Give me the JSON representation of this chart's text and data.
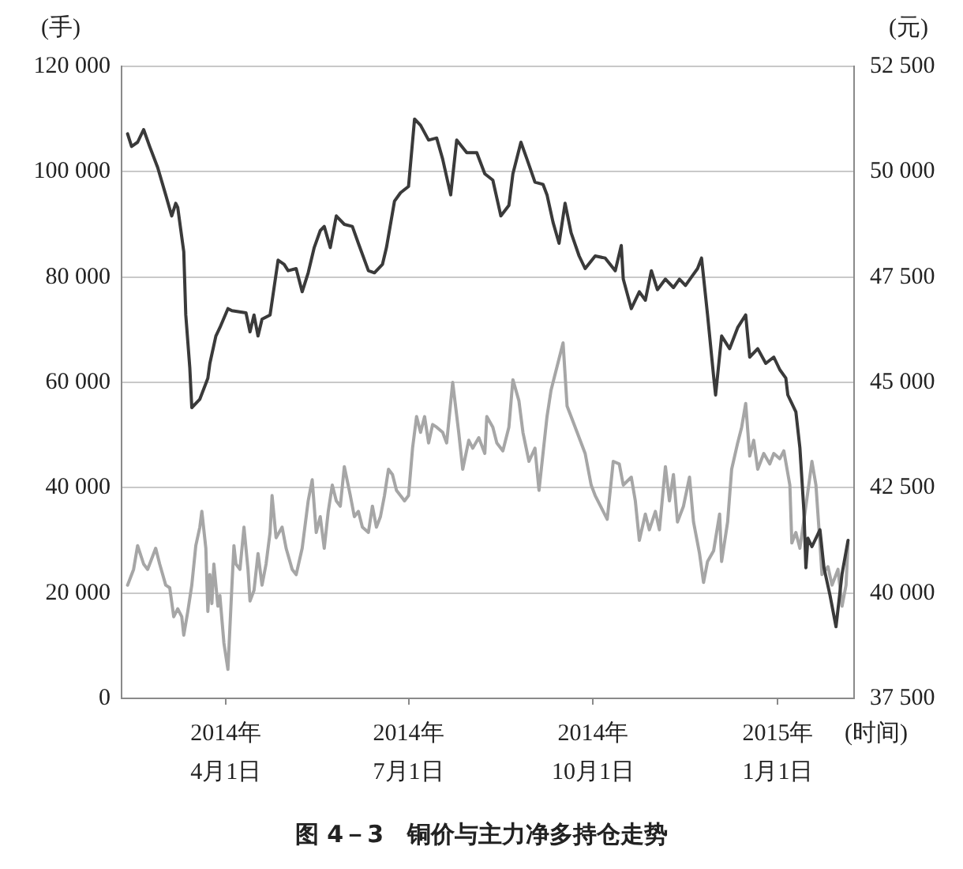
{
  "chart_data": {
    "type": "line",
    "title": "图 4－3　铜价与主力净多持仓走势",
    "xlabel": "(时间)",
    "ylabel": "(手)",
    "y2label": "(元)",
    "xlim": [
      "2014-02-08",
      "2015-02-08"
    ],
    "xticks": [
      {
        "value": "2014-04-01",
        "label": "2014年\n4月1日"
      },
      {
        "value": "2014-07-01",
        "label": "2014年\n7月1日"
      },
      {
        "value": "2014-10-01",
        "label": "2014年\n10月1日"
      },
      {
        "value": "2015-01-01",
        "label": "2015年\n1月1日"
      }
    ],
    "ylim": [
      0,
      120000
    ],
    "yticks": [
      0,
      {
        "value": 20000,
        "label": "20 000"
      },
      {
        "value": 40000,
        "label": "40 000"
      },
      {
        "value": 60000,
        "label": "60 000"
      },
      {
        "value": 80000,
        "label": "80 000"
      },
      {
        "value": 100000,
        "label": "100 000"
      },
      {
        "value": 120000,
        "label": "120 000"
      }
    ],
    "y2lim": [
      37500,
      52500
    ],
    "y2ticks": [
      {
        "value": 37500,
        "label": "37 500"
      },
      {
        "value": 40000,
        "label": "40 000"
      },
      {
        "value": 42500,
        "label": "42 500"
      },
      {
        "value": 45000,
        "label": "45 000"
      },
      {
        "value": 47500,
        "label": "47 500"
      },
      {
        "value": 50000,
        "label": "50 000"
      },
      {
        "value": 52500,
        "label": "52 500"
      }
    ],
    "grid": "y",
    "series": [
      {
        "color": "#3a3a3a",
        "axis": "y2",
        "x": [
          "2014-02-11",
          "2014-02-13",
          "2014-02-16",
          "2014-02-19",
          "2014-02-22",
          "2014-02-26",
          "2014-03-02",
          "2014-03-05",
          "2014-03-07",
          "2014-03-08",
          "2014-03-11",
          "2014-03-12",
          "2014-03-14",
          "2014-03-15",
          "2014-03-19",
          "2014-03-23",
          "2014-03-24",
          "2014-03-27",
          "2014-03-29",
          "2014-04-02",
          "2014-04-04",
          "2014-04-11",
          "2014-04-13",
          "2014-04-15",
          "2014-04-17",
          "2014-04-19",
          "2014-04-23",
          "2014-04-27",
          "2014-04-30",
          "2014-05-02",
          "2014-05-06",
          "2014-05-09",
          "2014-05-12",
          "2014-05-15",
          "2014-05-18",
          "2014-05-20",
          "2014-05-23",
          "2014-05-26",
          "2014-05-30",
          "2014-06-03",
          "2014-06-06",
          "2014-06-11",
          "2014-06-14",
          "2014-06-18",
          "2014-06-20",
          "2014-06-24",
          "2014-06-27",
          "2014-07-01",
          "2014-07-04",
          "2014-07-07",
          "2014-07-11",
          "2014-07-15",
          "2014-07-18",
          "2014-07-22",
          "2014-07-25",
          "2014-07-30",
          "2014-08-04",
          "2014-08-08",
          "2014-08-12",
          "2014-08-16",
          "2014-08-20",
          "2014-08-22",
          "2014-08-26",
          "2014-08-29",
          "2014-09-02",
          "2014-09-06",
          "2014-09-08",
          "2014-09-11",
          "2014-09-14",
          "2014-09-17",
          "2014-09-20",
          "2014-09-24",
          "2014-09-27",
          "2014-10-02",
          "2014-10-07",
          "2014-10-12",
          "2014-10-15",
          "2014-10-16",
          "2014-10-20",
          "2014-10-24",
          "2014-10-27",
          "2014-10-30",
          "2014-11-02",
          "2014-11-06",
          "2014-11-10",
          "2014-11-13",
          "2014-11-16",
          "2014-11-19",
          "2014-11-22",
          "2014-11-24",
          "2014-11-27",
          "2014-11-30",
          "2014-12-01",
          "2014-12-04",
          "2014-12-08",
          "2014-12-12",
          "2014-12-16",
          "2014-12-18",
          "2014-12-22",
          "2014-12-26",
          "2014-12-30",
          "2015-01-02",
          "2015-01-05",
          "2015-01-06",
          "2015-01-10",
          "2015-01-12",
          "2015-01-14",
          "2015-01-15",
          "2015-01-16",
          "2015-01-18",
          "2015-01-22",
          "2015-01-24",
          "2015-01-27",
          "2015-01-30",
          "2015-02-02",
          "2015-02-05"
        ],
        "values": [
          50900,
          50600,
          50700,
          51000,
          50600,
          50100,
          49450,
          48950,
          49250,
          49150,
          48100,
          46600,
          45350,
          44400,
          44600,
          45100,
          45450,
          46100,
          46300,
          46750,
          46700,
          46650,
          46200,
          46600,
          46100,
          46500,
          46600,
          47900,
          47800,
          47650,
          47700,
          47150,
          47600,
          48200,
          48600,
          48700,
          48200,
          48950,
          48750,
          48700,
          48300,
          47650,
          47600,
          47800,
          48200,
          49300,
          49500,
          49650,
          51250,
          51100,
          50750,
          50800,
          50300,
          49450,
          50750,
          50450,
          50450,
          49950,
          49800,
          48950,
          49200,
          49950,
          50700,
          50300,
          49750,
          49700,
          49450,
          48800,
          48300,
          49250,
          48550,
          48000,
          47700,
          48000,
          47950,
          47650,
          48250,
          47450,
          46750,
          47150,
          46950,
          47650,
          47200,
          47450,
          47250,
          47450,
          47300,
          47500,
          47700,
          47950,
          46600,
          45150,
          44700,
          46100,
          45800,
          46300,
          46600,
          45600,
          45800,
          45450,
          45600,
          45300,
          45100,
          44700,
          44300,
          43450,
          41950,
          40600,
          41300,
          41100,
          41500,
          40600,
          39950,
          39200,
          40450,
          41250
        ]
      },
      {
        "color": "#a6a6a6",
        "x": [
          "2014-02-11",
          "2014-02-14",
          "2014-02-16",
          "2014-02-19",
          "2014-02-21",
          "2014-02-25",
          "2014-02-27",
          "2014-03-02",
          "2014-03-04",
          "2014-03-06",
          "2014-03-08",
          "2014-03-10",
          "2014-03-11",
          "2014-03-13",
          "2014-03-15",
          "2014-03-17",
          "2014-03-19",
          "2014-03-20",
          "2014-03-22",
          "2014-03-23",
          "2014-03-24",
          "2014-03-25",
          "2014-03-26",
          "2014-03-28",
          "2014-03-29",
          "2014-03-31",
          "2014-04-02",
          "2014-04-04",
          "2014-04-05",
          "2014-04-06",
          "2014-04-08",
          "2014-04-10",
          "2014-04-12",
          "2014-04-13",
          "2014-04-15",
          "2014-04-17",
          "2014-04-19",
          "2014-04-21",
          "2014-04-23",
          "2014-04-24",
          "2014-04-26",
          "2014-04-29",
          "2014-05-01",
          "2014-05-04",
          "2014-05-06",
          "2014-05-09",
          "2014-05-12",
          "2014-05-14",
          "2014-05-16",
          "2014-05-18",
          "2014-05-20",
          "2014-05-22",
          "2014-05-24",
          "2014-05-26",
          "2014-05-28",
          "2014-05-30",
          "2014-06-02",
          "2014-06-04",
          "2014-06-06",
          "2014-06-08",
          "2014-06-11",
          "2014-06-13",
          "2014-06-15",
          "2014-06-17",
          "2014-06-19",
          "2014-06-21",
          "2014-06-23",
          "2014-06-25",
          "2014-06-29",
          "2014-07-01",
          "2014-07-03",
          "2014-07-05",
          "2014-07-07",
          "2014-07-09",
          "2014-07-11",
          "2014-07-13",
          "2014-07-15",
          "2014-07-18",
          "2014-07-20",
          "2014-07-23",
          "2014-07-26",
          "2014-07-28",
          "2014-07-31",
          "2014-08-02",
          "2014-08-05",
          "2014-08-08",
          "2014-08-09",
          "2014-08-12",
          "2014-08-14",
          "2014-08-17",
          "2014-08-20",
          "2014-08-22",
          "2014-08-25",
          "2014-08-27",
          "2014-08-30",
          "2014-09-02",
          "2014-09-04",
          "2014-09-08",
          "2014-09-10",
          "2014-09-14",
          "2014-09-16",
          "2014-09-18",
          "2014-09-20",
          "2014-09-23",
          "2014-09-27",
          "2014-09-30",
          "2014-10-02",
          "2014-10-06",
          "2014-10-08",
          "2014-10-11",
          "2014-10-14",
          "2014-10-16",
          "2014-10-20",
          "2014-10-22",
          "2014-10-24",
          "2014-10-27",
          "2014-10-29",
          "2014-11-01",
          "2014-11-03",
          "2014-11-06",
          "2014-11-08",
          "2014-11-10",
          "2014-11-12",
          "2014-11-15",
          "2014-11-18",
          "2014-11-20",
          "2014-11-23",
          "2014-11-25",
          "2014-11-27",
          "2014-11-30",
          "2014-12-03",
          "2014-12-04",
          "2014-12-07",
          "2014-12-09",
          "2014-12-12",
          "2014-12-14",
          "2014-12-16",
          "2014-12-18",
          "2014-12-20",
          "2014-12-22",
          "2014-12-25",
          "2014-12-28",
          "2014-12-30",
          "2015-01-02",
          "2015-01-04",
          "2015-01-07",
          "2015-01-08",
          "2015-01-10",
          "2015-01-12",
          "2015-01-15",
          "2015-01-18",
          "2015-01-20",
          "2015-01-22",
          "2015-01-23",
          "2015-01-26",
          "2015-01-28",
          "2015-01-31",
          "2015-02-02",
          "2015-02-04",
          "2015-02-05"
        ],
        "values": [
          21500,
          24500,
          29000,
          25500,
          24500,
          28500,
          25500,
          21500,
          21000,
          15500,
          17000,
          15500,
          12000,
          16500,
          21500,
          29000,
          32500,
          35500,
          28500,
          16500,
          23500,
          18000,
          25500,
          17500,
          19500,
          10500,
          5500,
          21500,
          29000,
          25500,
          24500,
          32500,
          24500,
          18500,
          20500,
          27500,
          21500,
          25500,
          31500,
          38500,
          30500,
          32500,
          28500,
          24500,
          23500,
          28500,
          37500,
          41500,
          31500,
          34500,
          28500,
          35500,
          40500,
          37500,
          36500,
          44000,
          38500,
          34500,
          35500,
          32500,
          31500,
          36500,
          32500,
          34500,
          38500,
          43500,
          42500,
          39500,
          37500,
          38500,
          47500,
          53500,
          50500,
          53500,
          48500,
          52000,
          51500,
          50500,
          48500,
          60000,
          50500,
          43500,
          49000,
          47500,
          49500,
          46500,
          53500,
          51500,
          48500,
          47000,
          51500,
          60500,
          56500,
          50500,
          45000,
          47500,
          39500,
          53500,
          58500,
          64500,
          67500,
          55500,
          53500,
          50500,
          46500,
          40500,
          38500,
          35500,
          34000,
          45000,
          44500,
          40500,
          42000,
          37500,
          30000,
          35000,
          32000,
          35500,
          32000,
          44000,
          37500,
          42500,
          33500,
          36500,
          42000,
          33500,
          27500,
          22000,
          26000,
          28000,
          35000,
          26000,
          33500,
          43500,
          48500,
          51500,
          56000,
          46000,
          49000,
          43500,
          46500,
          44500,
          46500,
          45500,
          47000,
          40500,
          29500,
          31500,
          28500,
          36500,
          45000,
          40500,
          29500,
          23500,
          25000,
          21500,
          24500,
          17500,
          21500,
          29500
        ]
      }
    ]
  }
}
